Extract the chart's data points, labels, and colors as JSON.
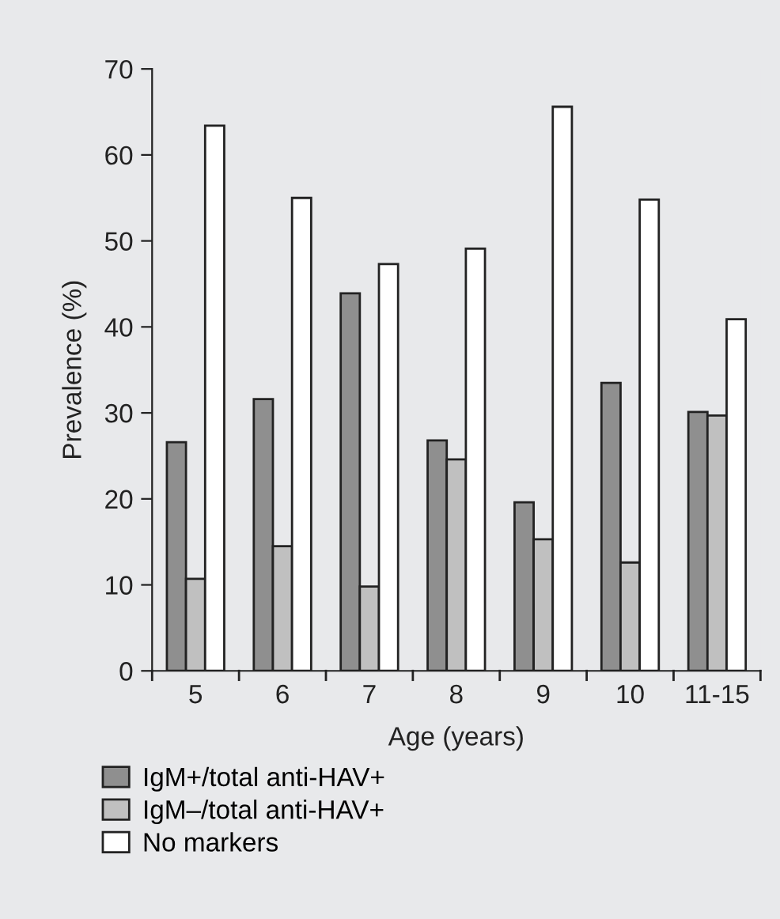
{
  "chart_data": {
    "type": "bar",
    "xlabel": "Age (years)",
    "ylabel": "Prevalence (%)",
    "categories": [
      "5",
      "6",
      "7",
      "8",
      "9",
      "10",
      "11-15"
    ],
    "series": [
      {
        "name": "IgM+/total anti-HAV+",
        "color": "#8f8f8f",
        "values": [
          26.6,
          31.6,
          43.9,
          26.8,
          19.6,
          33.5,
          30.1
        ]
      },
      {
        "name": "IgM–/total anti-HAV+",
        "color": "#c0c0c0",
        "values": [
          10.7,
          14.5,
          9.8,
          24.6,
          15.3,
          12.6,
          29.7
        ]
      },
      {
        "name": "No markers",
        "color": "#ffffff",
        "values": [
          63.4,
          55.0,
          47.3,
          49.1,
          65.6,
          54.8,
          40.9
        ]
      }
    ],
    "ylim": [
      0,
      70
    ],
    "yticks": [
      0,
      10,
      20,
      30,
      40,
      50,
      60,
      70
    ],
    "grid": false,
    "legend": "bottom"
  }
}
